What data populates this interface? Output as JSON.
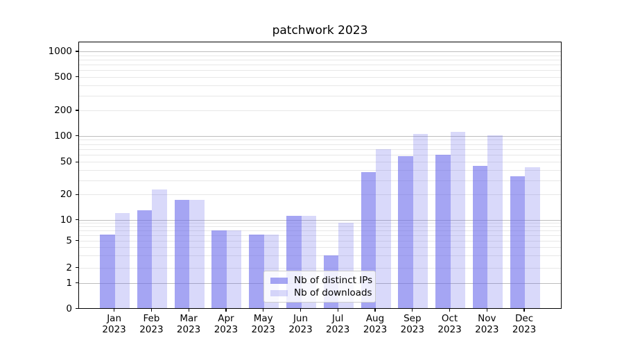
{
  "title": "patchwork 2023",
  "chart_data": {
    "type": "bar",
    "title": "patchwork 2023",
    "categories": [
      "Jan 2023",
      "Feb 2023",
      "Mar 2023",
      "Apr 2023",
      "May 2023",
      "Jun 2023",
      "Jul 2023",
      "Aug 2023",
      "Sep 2023",
      "Oct 2023",
      "Nov 2023",
      "Dec 2023"
    ],
    "x_axis": {
      "months": [
        "Jan",
        "Feb",
        "Mar",
        "Apr",
        "May",
        "Jun",
        "Jul",
        "Aug",
        "Sep",
        "Oct",
        "Nov",
        "Dec"
      ],
      "year": "2023"
    },
    "series": [
      {
        "name": "Nb of distinct IPs",
        "color": "rgba(105,105,235,0.6)",
        "values": [
          6,
          13,
          17,
          7,
          6,
          11,
          3,
          37,
          58,
          60,
          44,
          33
        ]
      },
      {
        "name": "Nb of downloads",
        "color": "rgba(105,105,235,0.25)",
        "values": [
          12,
          23,
          17,
          7,
          6,
          11,
          9,
          70,
          105,
          110,
          100,
          43
        ]
      }
    ],
    "y_axis": {
      "scale": "symlog",
      "ticks": [
        0,
        1,
        2,
        5,
        10,
        20,
        50,
        100,
        200,
        500,
        1000
      ],
      "minor_gridlines": [
        3,
        4,
        6,
        7,
        8,
        9,
        30,
        40,
        60,
        70,
        80,
        90,
        300,
        400,
        600,
        700,
        800,
        900
      ]
    },
    "grid": true,
    "legend_position": "lower center"
  },
  "legend": {
    "items": [
      {
        "label": "Nb of distinct IPs",
        "color": "rgba(105,105,235,0.6)"
      },
      {
        "label": "Nb of downloads",
        "color": "rgba(105,105,235,0.25)"
      }
    ]
  },
  "colors": {
    "bar_dark": "#a5a5f3",
    "bar_light": "#d9d9fa",
    "grid_major": "#bdbdbd",
    "grid_minor": "#e7e7e7",
    "axis": "#000000",
    "background": "#ffffff"
  }
}
